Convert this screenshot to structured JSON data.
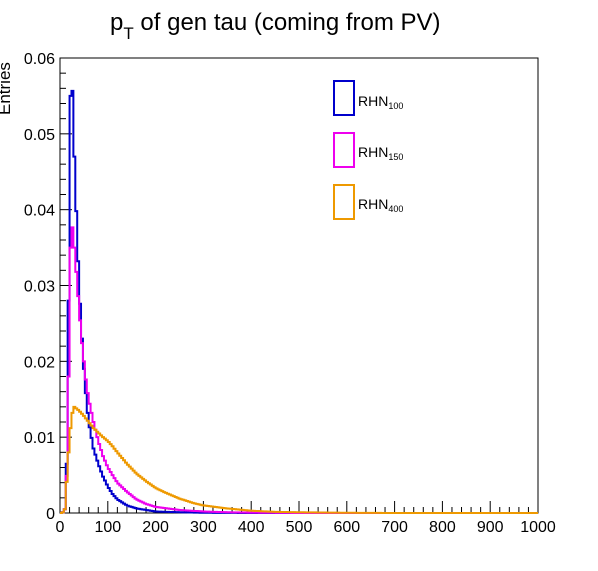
{
  "chart_data": {
    "type": "line",
    "title_main": "p",
    "title_sub": "T",
    "title_rest": " of gen tau (coming from PV)",
    "ylabel": "Entries",
    "xlabel": "",
    "xlim": [
      0,
      1000
    ],
    "ylim": [
      0,
      0.06
    ],
    "xticks": [
      0,
      100,
      200,
      300,
      400,
      500,
      600,
      700,
      800,
      900,
      1000
    ],
    "xtick_labels": [
      "0",
      "100",
      "200",
      "300",
      "400",
      "500",
      "600",
      "700",
      "800",
      "900",
      "1000"
    ],
    "yticks": [
      0,
      0.01,
      0.02,
      0.03,
      0.04,
      0.05,
      0.06
    ],
    "ytick_labels": [
      "0",
      "0.01",
      "0.02",
      "0.03",
      "0.04",
      "0.05",
      "0.06"
    ],
    "legend_position": "top-right",
    "series": [
      {
        "name_main": "RHN",
        "name_sub": "100",
        "color": "#0000cc",
        "points": [
          [
            0,
            0
          ],
          [
            5,
            0
          ],
          [
            10,
            0.0005
          ],
          [
            15,
            0.008
          ],
          [
            18,
            0.028
          ],
          [
            20,
            0.046
          ],
          [
            22,
            0.055
          ],
          [
            25,
            0.0575
          ],
          [
            28,
            0.052
          ],
          [
            30,
            0.047
          ],
          [
            35,
            0.038
          ],
          [
            40,
            0.03
          ],
          [
            45,
            0.024
          ],
          [
            50,
            0.019
          ],
          [
            55,
            0.015
          ],
          [
            60,
            0.012
          ],
          [
            70,
            0.0085
          ],
          [
            80,
            0.0065
          ],
          [
            90,
            0.0048
          ],
          [
            100,
            0.0035
          ],
          [
            110,
            0.0025
          ],
          [
            120,
            0.0018
          ],
          [
            140,
            0.001
          ],
          [
            160,
            0.0006
          ],
          [
            180,
            0.0004
          ],
          [
            200,
            0.0002
          ],
          [
            250,
            0.0001
          ],
          [
            300,
            3e-05
          ],
          [
            400,
            0
          ],
          [
            1000,
            0
          ]
        ]
      },
      {
        "name_main": "RHN",
        "name_sub": "150",
        "color": "#ee00ee",
        "points": [
          [
            0,
            0
          ],
          [
            5,
            0
          ],
          [
            10,
            0.0005
          ],
          [
            15,
            0.006
          ],
          [
            18,
            0.018
          ],
          [
            20,
            0.027
          ],
          [
            22,
            0.035
          ],
          [
            25,
            0.038
          ],
          [
            28,
            0.037
          ],
          [
            30,
            0.035
          ],
          [
            35,
            0.031
          ],
          [
            40,
            0.027
          ],
          [
            45,
            0.023
          ],
          [
            50,
            0.02
          ],
          [
            55,
            0.017
          ],
          [
            60,
            0.015
          ],
          [
            70,
            0.012
          ],
          [
            80,
            0.0095
          ],
          [
            90,
            0.0075
          ],
          [
            100,
            0.006
          ],
          [
            110,
            0.005
          ],
          [
            120,
            0.004
          ],
          [
            140,
            0.0028
          ],
          [
            160,
            0.0018
          ],
          [
            180,
            0.0012
          ],
          [
            200,
            0.0008
          ],
          [
            250,
            0.0004
          ],
          [
            300,
            0.0002
          ],
          [
            350,
            0.0001
          ],
          [
            400,
            5e-05
          ],
          [
            500,
            0
          ],
          [
            1000,
            0
          ]
        ]
      },
      {
        "name_main": "RHN",
        "name_sub": "400",
        "color": "#ee9900",
        "points": [
          [
            0,
            0
          ],
          [
            5,
            0
          ],
          [
            10,
            0.0005
          ],
          [
            15,
            0.005
          ],
          [
            20,
            0.01
          ],
          [
            25,
            0.013
          ],
          [
            30,
            0.014
          ],
          [
            40,
            0.0135
          ],
          [
            50,
            0.0128
          ],
          [
            60,
            0.012
          ],
          [
            70,
            0.0112
          ],
          [
            80,
            0.0106
          ],
          [
            90,
            0.01
          ],
          [
            100,
            0.0095
          ],
          [
            110,
            0.0088
          ],
          [
            120,
            0.008
          ],
          [
            140,
            0.0065
          ],
          [
            160,
            0.0052
          ],
          [
            180,
            0.0042
          ],
          [
            200,
            0.0033
          ],
          [
            220,
            0.0027
          ],
          [
            250,
            0.0019
          ],
          [
            280,
            0.0013
          ],
          [
            300,
            0.001
          ],
          [
            350,
            0.0006
          ],
          [
            400,
            0.0003
          ],
          [
            450,
            0.00015
          ],
          [
            500,
            0.0001
          ],
          [
            600,
            3e-05
          ],
          [
            700,
            0
          ],
          [
            1000,
            0
          ]
        ]
      }
    ]
  }
}
